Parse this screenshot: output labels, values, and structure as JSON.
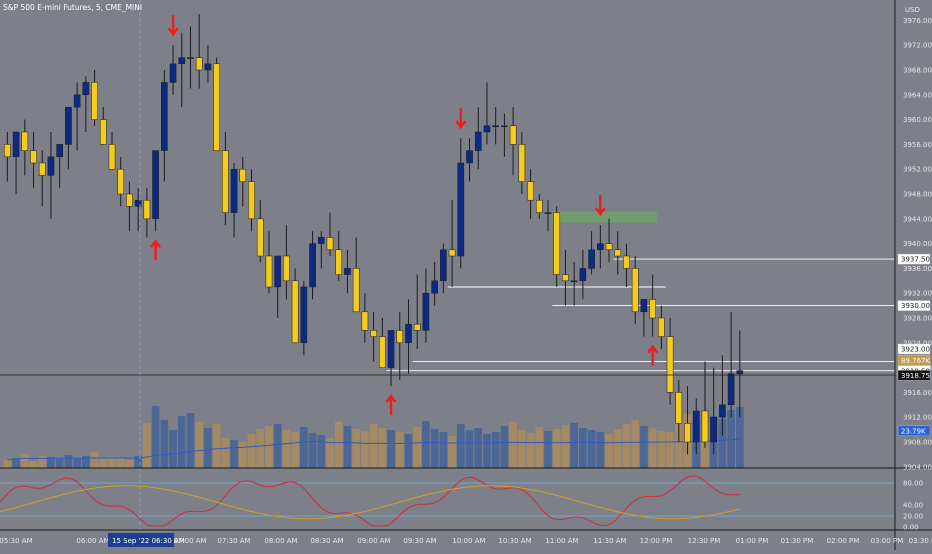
{
  "header": {
    "title": "S&P 500 E-mini Futures, 5, CME_MINI",
    "currency": "USD"
  },
  "price_axis": {
    "ticks": [
      "3976.00",
      "3972.00",
      "3968.00",
      "3964.00",
      "3960.00",
      "3956.00",
      "3952.00",
      "3948.00",
      "3944.00",
      "3940.00",
      "3936.00",
      "3932.00",
      "3928.00",
      "3924.00",
      "3920.00",
      "3916.00",
      "3912.00",
      "3908.00",
      "3904.00"
    ],
    "labels": [
      {
        "text": "3937.50",
        "price": 3937.5,
        "style": "light"
      },
      {
        "text": "3930.00",
        "price": 3930.0,
        "style": "light"
      },
      {
        "text": "3923.00",
        "price": 3923.0,
        "style": "light"
      },
      {
        "text": "89.767K",
        "price": 3921.2,
        "style": "orange"
      },
      {
        "text": "3919.50",
        "price": 3919.5,
        "style": "light"
      },
      {
        "text": "3918.75",
        "price": 3918.75,
        "style": "dark"
      },
      {
        "text": "23.79K",
        "price": 3909.8,
        "style": "blue"
      }
    ]
  },
  "oscillator_axis": {
    "ticks": [
      "80.00",
      "40.00",
      "20.00",
      "0.00"
    ]
  },
  "time_axis": {
    "ticks": [
      "05:30 AM",
      "06:00 AM",
      "07:00 AM",
      "07:30 AM",
      "08:00 AM",
      "08:30 AM",
      "09:00 AM",
      "09:30 AM",
      "10:00 AM",
      "10:30 AM",
      "11:00 AM",
      "11:30 AM",
      "12:00 PM",
      "12:30 PM",
      "01:00 PM",
      "01:30 PM",
      "02:00 PM",
      "03:00 PM",
      "03:30 PM"
    ],
    "cursor_label": "15 Sep '22   06:30 AM"
  },
  "colors": {
    "background": "#7d8088",
    "bull_candle": "#0d2a82",
    "bear_candle": "#f5cc1b",
    "wick": "#1c1c1c",
    "volume_blue": "#4c6796",
    "volume_orange": "#a48a62",
    "arrow": "#f21a1a",
    "zone": "#6fa06a",
    "osc_red": "#d42b3b",
    "osc_orange": "#d4a020",
    "osc_band": "#6fb6e6",
    "vol_ma": "#3358c8"
  },
  "chart_data": {
    "type": "candlestick",
    "title": "S&P 500 E-mini Futures, 5, CME_MINI",
    "interval": "5 min",
    "price_range": [
      3904,
      3978
    ],
    "ohlc_open": [
      3956,
      3954,
      3958,
      3955,
      3953,
      3951,
      3954,
      3956,
      3962,
      3964,
      3966,
      3960,
      3956,
      3952,
      3948,
      3946,
      3947,
      3944,
      3955,
      3966,
      3969,
      3970,
      3970,
      3968,
      3969,
      3955,
      3945,
      3952,
      3950,
      3944,
      3938,
      3933,
      3938,
      3934,
      3924,
      3933,
      3940,
      3941,
      3939,
      3935,
      3936,
      3929,
      3926,
      3925,
      3920,
      3926,
      3924,
      3927,
      3926,
      3932,
      3934,
      3939,
      3938,
      3953,
      3955,
      3958,
      3959,
      3959,
      3959,
      3956,
      3950,
      3947,
      3945,
      3945,
      3935,
      3934,
      3934,
      3936,
      3939,
      3940,
      3939,
      3938,
      3936,
      3929,
      3931,
      3928,
      3925,
      3916,
      3911,
      3908,
      3913,
      3908,
      3912,
      3914,
      3919
    ],
    "ohlc_high": [
      3958,
      3957,
      3960,
      3958,
      3955,
      3958,
      3956,
      3960,
      3966,
      3967,
      3968,
      3962,
      3958,
      3954,
      3950,
      3949,
      3949,
      3954,
      3968,
      3972,
      3974,
      3975,
      3977,
      3972,
      3970,
      3958,
      3953,
      3954,
      3952,
      3947,
      3942,
      3937,
      3943,
      3936,
      3934,
      3942,
      3942,
      3945,
      3942,
      3939,
      3941,
      3932,
      3929,
      3928,
      3924,
      3929,
      3931,
      3935,
      3936,
      3937,
      3940,
      3947,
      3957,
      3957,
      3962,
      3966,
      3962,
      3961,
      3962,
      3958,
      3952,
      3948,
      3947,
      3946,
      3939,
      3937,
      3939,
      3942,
      3943,
      3944,
      3942,
      3940,
      3938,
      3931,
      3935,
      3930,
      3928,
      3918,
      3917,
      3915,
      3921,
      3920,
      3922,
      3929,
      3926
    ],
    "ohlc_low": [
      3950,
      3948,
      3951,
      3949,
      3946,
      3944,
      3949,
      3952,
      3955,
      3958,
      3959,
      3956,
      3952,
      3946,
      3942,
      3942,
      3941,
      3942,
      3950,
      3964,
      3962,
      3965,
      3965,
      3966,
      3955,
      3943,
      3941,
      3946,
      3942,
      3937,
      3932,
      3928,
      3931,
      3924,
      3922,
      3931,
      3936,
      3938,
      3934,
      3932,
      3929,
      3924,
      3921,
      3920,
      3917,
      3918,
      3919,
      3923,
      3924,
      3930,
      3932,
      3933,
      3936,
      3950,
      3952,
      3956,
      3956,
      3954,
      3951,
      3948,
      3944,
      3944,
      3942,
      3933,
      3930,
      3930,
      3931,
      3935,
      3936,
      3937,
      3935,
      3933,
      3927,
      3925,
      3925,
      3923,
      3914,
      3908,
      3906,
      3906,
      3907,
      3906,
      3909,
      3912,
      3912
    ],
    "ohlc_close": [
      3954,
      3958,
      3955,
      3953,
      3951,
      3954,
      3956,
      3962,
      3964,
      3966,
      3960,
      3956,
      3952,
      3948,
      3946,
      3947,
      3944,
      3955,
      3966,
      3969,
      3970,
      3970,
      3968,
      3969,
      3955,
      3945,
      3952,
      3950,
      3944,
      3938,
      3933,
      3938,
      3934,
      3924,
      3933,
      3940,
      3941,
      3939,
      3935,
      3936,
      3929,
      3926,
      3925,
      3920,
      3926,
      3924,
      3927,
      3926,
      3932,
      3934,
      3939,
      3938,
      3953,
      3955,
      3958,
      3959,
      3959,
      3959,
      3956,
      3950,
      3947,
      3945,
      3945,
      3935,
      3934,
      3934,
      3936,
      3939,
      3940,
      3939,
      3938,
      3936,
      3929,
      3931,
      3928,
      3925,
      3916,
      3911,
      3908,
      3913,
      3908,
      3912,
      3914,
      3919,
      3919.5
    ],
    "volume": [
      8,
      10,
      14,
      7,
      12,
      11,
      9,
      13,
      10,
      12,
      16,
      9,
      11,
      10,
      8,
      12,
      45,
      62,
      48,
      38,
      52,
      55,
      46,
      40,
      44,
      30,
      28,
      26,
      34,
      39,
      42,
      44,
      38,
      36,
      41,
      35,
      33,
      30,
      46,
      42,
      39,
      37,
      44,
      40,
      38,
      36,
      34,
      41,
      47,
      39,
      36,
      32,
      44,
      38,
      40,
      34,
      36,
      42,
      46,
      38,
      35,
      41,
      37,
      39,
      43,
      45,
      40,
      38,
      36,
      34,
      39,
      44,
      48,
      42,
      40,
      37,
      36,
      50,
      54,
      48,
      46,
      52,
      49,
      58,
      61
    ],
    "arrows": [
      {
        "direction": "down",
        "bar": 19
      },
      {
        "direction": "up",
        "bar": 17
      },
      {
        "direction": "up",
        "bar": 44
      },
      {
        "direction": "down",
        "bar": 52
      },
      {
        "direction": "down",
        "bar": 68
      },
      {
        "direction": "up",
        "bar": 74
      }
    ],
    "zone": {
      "price_top": 3945.2,
      "price_bottom": 3943.4,
      "start_bar": 63,
      "end_bar": 75
    },
    "levels": [
      {
        "price": 3937.5,
        "start_bar": 70
      },
      {
        "price": 3933.0,
        "start_bar": 51,
        "end_bar": 76
      },
      {
        "price": 3930.0,
        "start_bar": 63
      },
      {
        "price": 3921.0,
        "start_bar": 47
      },
      {
        "price": 3919.5,
        "start_bar": 44
      }
    ],
    "current_price": 3918.75
  }
}
